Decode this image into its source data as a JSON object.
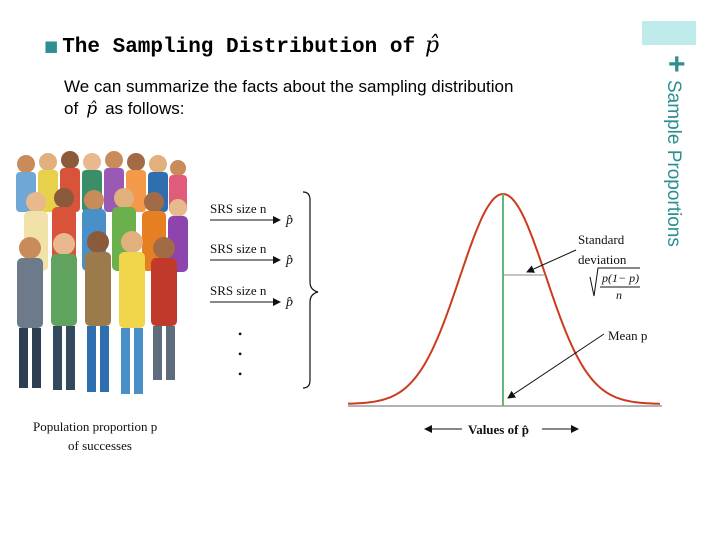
{
  "slide": {
    "bullet": "■",
    "title_prefix": "The Sampling Distribution of",
    "title_symbol": "p̂",
    "side_title": "Sample Proportions",
    "plus_mark": "+",
    "intro_line1": "We can summarize the facts about the sampling distribution",
    "intro_line2_prefix": "of",
    "intro_symbol": "p̂",
    "intro_line2_suffix": "as follows:",
    "accent_color": "#bfeceb",
    "side_color": "#2d8f8f"
  },
  "figure": {
    "samples": [
      {
        "label": "SRS size n",
        "result": "p̂"
      },
      {
        "label": "SRS size n",
        "result": "p̂"
      },
      {
        "label": "SRS size n",
        "result": "p̂"
      }
    ],
    "ellipsis": "•",
    "population_label_line1": "Population proportion p",
    "population_label_line2": "of successes",
    "sd_label_line1": "Standard",
    "sd_label_line2": "deviation",
    "sd_formula_num": "p(1− p)",
    "sd_formula_den": "n",
    "mean_label": "Mean p",
    "axis_label": "Values of p̂",
    "curve_color": "#cc3b1f",
    "mean_line_color": "#5fb878"
  }
}
